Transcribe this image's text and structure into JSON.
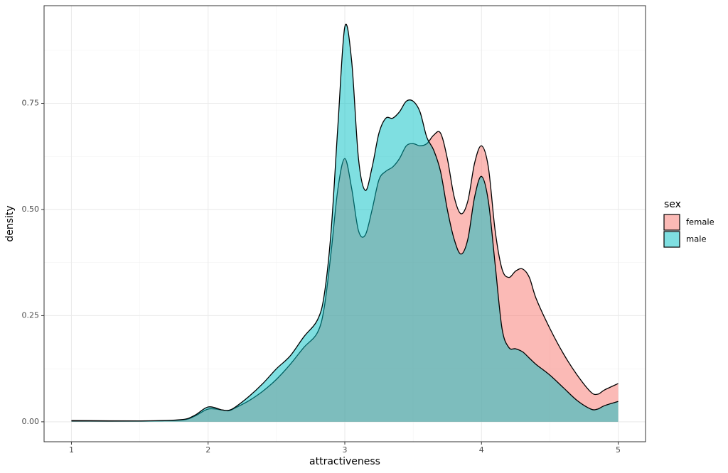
{
  "chart_data": {
    "type": "density",
    "x_label": "attractiveness",
    "y_label": "density",
    "legend_title": "sex",
    "xlim": [
      0.8,
      5.2
    ],
    "ylim": [
      -0.047,
      0.98
    ],
    "xticks": [
      1,
      2,
      3,
      4,
      5
    ],
    "yticks": [
      {
        "value": 0,
        "label": "0.00"
      },
      {
        "value": 0.25,
        "label": "0.25"
      },
      {
        "value": 0.5,
        "label": "0.50"
      },
      {
        "value": 0.75,
        "label": "0.75"
      }
    ],
    "xminor": [
      1.5,
      2.5,
      3.5,
      4.5
    ],
    "yminor": [
      0.125,
      0.375,
      0.625,
      0.875
    ],
    "grid": true,
    "legend_position": "right",
    "x": [
      1,
      1.5,
      1.8,
      1.9,
      2.0,
      2.1,
      2.15,
      2.2,
      2.3,
      2.4,
      2.5,
      2.6,
      2.7,
      2.8,
      2.85,
      2.9,
      2.95,
      3.0,
      3.05,
      3.1,
      3.15,
      3.2,
      3.25,
      3.3,
      3.35,
      3.4,
      3.45,
      3.5,
      3.55,
      3.6,
      3.65,
      3.7,
      3.75,
      3.8,
      3.85,
      3.9,
      3.95,
      4.0,
      4.05,
      4.1,
      4.15,
      4.2,
      4.25,
      4.3,
      4.35,
      4.4,
      4.5,
      4.6,
      4.7,
      4.8,
      4.85,
      4.9,
      5.0
    ],
    "series": [
      {
        "name": "female",
        "color": "#F8766D",
        "values": [
          0.003,
          0.002,
          0.004,
          0.013,
          0.03,
          0.028,
          0.026,
          0.033,
          0.05,
          0.072,
          0.1,
          0.135,
          0.175,
          0.21,
          0.27,
          0.4,
          0.55,
          0.62,
          0.55,
          0.45,
          0.44,
          0.5,
          0.57,
          0.59,
          0.6,
          0.62,
          0.65,
          0.655,
          0.65,
          0.655,
          0.675,
          0.68,
          0.62,
          0.53,
          0.49,
          0.52,
          0.61,
          0.65,
          0.6,
          0.45,
          0.36,
          0.34,
          0.355,
          0.36,
          0.34,
          0.29,
          0.22,
          0.16,
          0.11,
          0.07,
          0.065,
          0.075,
          0.09
        ]
      },
      {
        "name": "male",
        "color": "#00BFC4",
        "values": [
          0.002,
          0.002,
          0.005,
          0.015,
          0.035,
          0.028,
          0.027,
          0.035,
          0.06,
          0.09,
          0.125,
          0.155,
          0.2,
          0.24,
          0.3,
          0.45,
          0.7,
          0.93,
          0.85,
          0.62,
          0.545,
          0.6,
          0.68,
          0.715,
          0.715,
          0.73,
          0.755,
          0.755,
          0.73,
          0.67,
          0.64,
          0.59,
          0.5,
          0.43,
          0.395,
          0.43,
          0.53,
          0.578,
          0.52,
          0.37,
          0.22,
          0.175,
          0.172,
          0.165,
          0.15,
          0.135,
          0.11,
          0.08,
          0.05,
          0.03,
          0.03,
          0.038,
          0.048
        ]
      }
    ]
  }
}
